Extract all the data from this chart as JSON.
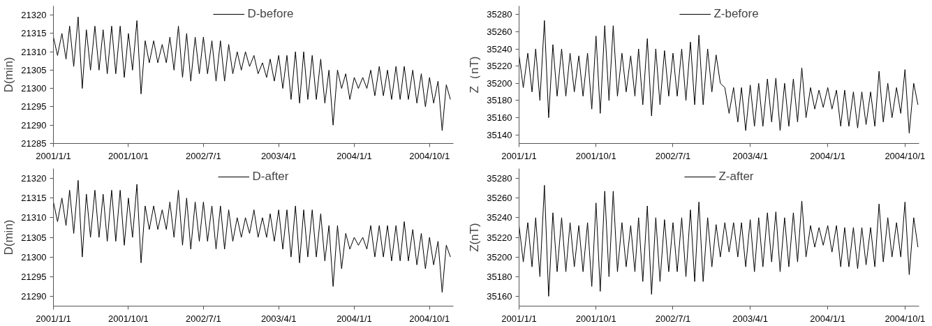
{
  "chart_data": [
    {
      "type": "line",
      "ylabel": "D(min)",
      "legend": "top",
      "xlim": [
        "2001-01-01",
        "2004-12-27"
      ],
      "ylim": [
        21285,
        21322.5
      ],
      "yticks": [
        21285,
        21290,
        21295,
        21300,
        21305,
        21310,
        21315,
        21320
      ],
      "xticks": [
        {
          "value": "2001-01-01",
          "label": "2001/1/1"
        },
        {
          "value": "2001-10-01",
          "label": "2001/10/1"
        },
        {
          "value": "2002-07-01",
          "label": "2002/7/1"
        },
        {
          "value": "2003-04-01",
          "label": "2003/4/1"
        },
        {
          "value": "2004-01-01",
          "label": "2004/1/1"
        },
        {
          "value": "2004-10-01",
          "label": "2004/10/1"
        }
      ],
      "x": [
        "2001-01-01",
        "2001-01-16",
        "2001-02-01",
        "2001-02-16",
        "2001-03-01",
        "2001-03-16",
        "2001-04-01",
        "2001-04-16",
        "2001-05-01",
        "2001-05-16",
        "2001-06-01",
        "2001-06-16",
        "2001-07-01",
        "2001-07-16",
        "2001-08-01",
        "2001-08-16",
        "2001-09-01",
        "2001-09-16",
        "2001-10-01",
        "2001-10-16",
        "2001-11-01",
        "2001-11-16",
        "2001-12-01",
        "2001-12-16",
        "2002-01-01",
        "2002-01-16",
        "2002-02-01",
        "2002-02-16",
        "2002-03-01",
        "2002-03-16",
        "2002-04-01",
        "2002-04-16",
        "2002-05-01",
        "2002-05-16",
        "2002-06-01",
        "2002-06-16",
        "2002-07-01",
        "2002-07-16",
        "2002-08-01",
        "2002-08-16",
        "2002-09-01",
        "2002-09-16",
        "2002-10-01",
        "2002-10-16",
        "2002-11-01",
        "2002-11-16",
        "2002-12-01",
        "2002-12-16",
        "2003-01-01",
        "2003-01-16",
        "2003-02-01",
        "2003-02-16",
        "2003-03-01",
        "2003-03-16",
        "2003-04-01",
        "2003-04-16",
        "2003-05-01",
        "2003-05-16",
        "2003-06-01",
        "2003-06-16",
        "2003-07-01",
        "2003-07-16",
        "2003-08-01",
        "2003-08-16",
        "2003-09-01",
        "2003-09-16",
        "2003-10-01",
        "2003-10-16",
        "2003-11-01",
        "2003-11-16",
        "2003-12-01",
        "2003-12-16",
        "2004-01-01",
        "2004-01-16",
        "2004-02-01",
        "2004-02-16",
        "2004-03-01",
        "2004-03-16",
        "2004-04-01",
        "2004-04-16",
        "2004-05-01",
        "2004-05-16",
        "2004-06-01",
        "2004-06-16",
        "2004-07-01",
        "2004-07-16",
        "2004-08-01",
        "2004-08-16",
        "2004-09-01",
        "2004-09-16",
        "2004-10-01",
        "2004-10-16",
        "2004-11-01",
        "2004-11-16",
        "2004-12-01",
        "2004-12-16"
      ],
      "series": [
        {
          "name": "D-before",
          "color": "#000000",
          "values": [
            21314,
            21309,
            21315,
            21308,
            21317,
            21306,
            21319.5,
            21300,
            21316,
            21305,
            21317,
            21305,
            21316,
            21304,
            21317,
            21304,
            21317,
            21303,
            21315,
            21305,
            21318.5,
            21298.5,
            21313,
            21307,
            21313,
            21307,
            21312,
            21307,
            21314,
            21305,
            21317,
            21303,
            21315,
            21302,
            21314,
            21304,
            21314,
            21304,
            21313,
            21302,
            21313,
            21302,
            21312,
            21304,
            21310,
            21305,
            21310,
            21306,
            21309,
            21304,
            21307,
            21303,
            21308,
            21302,
            21309,
            21300,
            21309,
            21297,
            21310,
            21296,
            21310,
            21297,
            21309,
            21297,
            21308,
            21296,
            21305,
            21290,
            21305,
            21300,
            21304,
            21297,
            21303,
            21300,
            21303,
            21300,
            21305,
            21298,
            21306,
            21298,
            21305,
            21297,
            21306,
            21297,
            21306,
            21297,
            21305,
            21296,
            21304,
            21295,
            21303,
            21296,
            21302,
            21288.5,
            21301,
            21297
          ]
        }
      ]
    },
    {
      "type": "line",
      "ylabel": "Z（nT)",
      "legend": "top",
      "xlim": [
        "2001-01-01",
        "2004-11-20"
      ],
      "ylim": [
        35130,
        35290
      ],
      "yticks": [
        35140,
        35160,
        35180,
        35200,
        35220,
        35240,
        35260,
        35280
      ],
      "xticks": [
        {
          "value": "2001-01-01",
          "label": "2001/1/1"
        },
        {
          "value": "2001-10-01",
          "label": "2001/10/1"
        },
        {
          "value": "2002-07-01",
          "label": "2002/7/1"
        },
        {
          "value": "2003-04-01",
          "label": "2003/4/1"
        },
        {
          "value": "2004-01-01",
          "label": "2004/1/1"
        },
        {
          "value": "2004-10-01",
          "label": "2004/10/1"
        }
      ],
      "x": [
        "2001-01-01",
        "2001-01-16",
        "2001-02-01",
        "2001-02-16",
        "2001-03-01",
        "2001-03-16",
        "2001-04-01",
        "2001-04-16",
        "2001-05-01",
        "2001-05-16",
        "2001-06-01",
        "2001-06-16",
        "2001-07-01",
        "2001-07-16",
        "2001-08-01",
        "2001-08-16",
        "2001-09-01",
        "2001-09-16",
        "2001-10-01",
        "2001-10-16",
        "2001-11-01",
        "2001-11-16",
        "2001-12-01",
        "2001-12-16",
        "2002-01-01",
        "2002-01-16",
        "2002-02-01",
        "2002-02-16",
        "2002-03-01",
        "2002-03-16",
        "2002-04-01",
        "2002-04-16",
        "2002-05-01",
        "2002-05-16",
        "2002-06-01",
        "2002-06-16",
        "2002-07-01",
        "2002-07-16",
        "2002-08-01",
        "2002-08-16",
        "2002-09-01",
        "2002-09-16",
        "2002-10-01",
        "2002-10-16",
        "2002-11-01",
        "2002-11-16",
        "2002-12-01",
        "2002-12-16",
        "2003-01-01",
        "2003-01-16",
        "2003-02-01",
        "2003-02-16",
        "2003-03-01",
        "2003-03-16",
        "2003-04-01",
        "2003-04-16",
        "2003-05-01",
        "2003-05-16",
        "2003-06-01",
        "2003-06-16",
        "2003-07-01",
        "2003-07-16",
        "2003-08-01",
        "2003-08-16",
        "2003-09-01",
        "2003-09-16",
        "2003-10-01",
        "2003-10-16",
        "2003-11-01",
        "2003-11-16",
        "2003-12-01",
        "2003-12-16",
        "2004-01-01",
        "2004-01-16",
        "2004-02-01",
        "2004-02-16",
        "2004-03-01",
        "2004-03-16",
        "2004-04-01",
        "2004-04-16",
        "2004-05-01",
        "2004-05-16",
        "2004-06-01",
        "2004-06-16",
        "2004-07-01",
        "2004-07-16",
        "2004-08-01",
        "2004-08-16",
        "2004-09-01",
        "2004-09-16",
        "2004-10-01",
        "2004-10-16",
        "2004-11-01",
        "2004-11-16"
      ],
      "series": [
        {
          "name": "Z-before",
          "color": "#000000",
          "values": [
            35232,
            35195,
            35235,
            35190,
            35240,
            35180,
            35273,
            35160,
            35245,
            35185,
            35240,
            35185,
            35235,
            35190,
            35232,
            35185,
            35235,
            35170,
            35255,
            35165,
            35267,
            35180,
            35267,
            35185,
            35235,
            35190,
            35232,
            35185,
            35240,
            35175,
            35252,
            35162,
            35240,
            35175,
            35238,
            35185,
            35235,
            35185,
            35240,
            35180,
            35248,
            35175,
            35256,
            35175,
            35240,
            35190,
            35233,
            35200,
            35195,
            35165,
            35195,
            35155,
            35195,
            35145,
            35198,
            35150,
            35200,
            35150,
            35205,
            35155,
            35206,
            35145,
            35200,
            35150,
            35205,
            35155,
            35218,
            35160,
            35195,
            35170,
            35192,
            35172,
            35195,
            35170,
            35192,
            35150,
            35192,
            35150,
            35190,
            35148,
            35190,
            35152,
            35190,
            35150,
            35214,
            35155,
            35200,
            35160,
            35195,
            35165,
            35216,
            35142,
            35200,
            35175
          ]
        }
      ]
    },
    {
      "type": "line",
      "ylabel": "D(min)",
      "legend": "top",
      "xlim": [
        "2001-01-01",
        "2004-12-27"
      ],
      "ylim": [
        21287.5,
        21322.5
      ],
      "yticks": [
        21290,
        21295,
        21300,
        21305,
        21310,
        21315,
        21320
      ],
      "xticks": [
        {
          "value": "2001-01-01",
          "label": "2001/1/1"
        },
        {
          "value": "2001-10-01",
          "label": "2001/10/1"
        },
        {
          "value": "2002-07-01",
          "label": "2002/7/1"
        },
        {
          "value": "2003-04-01",
          "label": "2003/4/1"
        },
        {
          "value": "2004-01-01",
          "label": "2004/1/1"
        },
        {
          "value": "2004-10-01",
          "label": "2004/10/1"
        }
      ],
      "x": [
        "2001-01-01",
        "2001-01-16",
        "2001-02-01",
        "2001-02-16",
        "2001-03-01",
        "2001-03-16",
        "2001-04-01",
        "2001-04-16",
        "2001-05-01",
        "2001-05-16",
        "2001-06-01",
        "2001-06-16",
        "2001-07-01",
        "2001-07-16",
        "2001-08-01",
        "2001-08-16",
        "2001-09-01",
        "2001-09-16",
        "2001-10-01",
        "2001-10-16",
        "2001-11-01",
        "2001-11-16",
        "2001-12-01",
        "2001-12-16",
        "2002-01-01",
        "2002-01-16",
        "2002-02-01",
        "2002-02-16",
        "2002-03-01",
        "2002-03-16",
        "2002-04-01",
        "2002-04-16",
        "2002-05-01",
        "2002-05-16",
        "2002-06-01",
        "2002-06-16",
        "2002-07-01",
        "2002-07-16",
        "2002-08-01",
        "2002-08-16",
        "2002-09-01",
        "2002-09-16",
        "2002-10-01",
        "2002-10-16",
        "2002-11-01",
        "2002-11-16",
        "2002-12-01",
        "2002-12-16",
        "2003-01-01",
        "2003-01-16",
        "2003-02-01",
        "2003-02-16",
        "2003-03-01",
        "2003-03-16",
        "2003-04-01",
        "2003-04-16",
        "2003-05-01",
        "2003-05-16",
        "2003-06-01",
        "2003-06-16",
        "2003-07-01",
        "2003-07-16",
        "2003-08-01",
        "2003-08-16",
        "2003-09-01",
        "2003-09-16",
        "2003-10-01",
        "2003-10-16",
        "2003-11-01",
        "2003-11-16",
        "2003-12-01",
        "2003-12-16",
        "2004-01-01",
        "2004-01-16",
        "2004-02-01",
        "2004-02-16",
        "2004-03-01",
        "2004-03-16",
        "2004-04-01",
        "2004-04-16",
        "2004-05-01",
        "2004-05-16",
        "2004-06-01",
        "2004-06-16",
        "2004-07-01",
        "2004-07-16",
        "2004-08-01",
        "2004-08-16",
        "2004-09-01",
        "2004-09-16",
        "2004-10-01",
        "2004-10-16",
        "2004-11-01",
        "2004-11-16",
        "2004-12-01",
        "2004-12-16"
      ],
      "series": [
        {
          "name": "D-after",
          "color": "#000000",
          "values": [
            21314,
            21309,
            21315,
            21308,
            21317,
            21306,
            21319.5,
            21300,
            21316,
            21305,
            21317,
            21305,
            21316,
            21304,
            21317,
            21304,
            21317,
            21303,
            21315,
            21305,
            21318.5,
            21298.5,
            21313,
            21307,
            21313,
            21307,
            21312,
            21307,
            21314,
            21305,
            21317,
            21303,
            21315,
            21302,
            21314,
            21304,
            21314,
            21304,
            21313,
            21302,
            21313,
            21302,
            21312,
            21304,
            21310,
            21305,
            21310,
            21306,
            21312,
            21305,
            21310,
            21305,
            21311,
            21304,
            21312,
            21302,
            21312,
            21300,
            21313,
            21298.5,
            21312,
            21300,
            21312,
            21300,
            21311,
            21299,
            21308,
            21292.5,
            21308,
            21297,
            21306,
            21302,
            21305,
            21303,
            21305,
            21302,
            21308,
            21300,
            21308,
            21300,
            21308,
            21299,
            21308,
            21299,
            21309,
            21299,
            21307,
            21298,
            21306,
            21297,
            21305,
            21298,
            21304,
            21291,
            21303,
            21300
          ]
        }
      ]
    },
    {
      "type": "line",
      "ylabel": "Z(nT)",
      "legend": "top",
      "xlim": [
        "2001-01-01",
        "2004-11-20"
      ],
      "ylim": [
        35150,
        35290
      ],
      "yticks": [
        35160,
        35180,
        35200,
        35220,
        35240,
        35260,
        35280
      ],
      "xticks": [
        {
          "value": "2001-01-01",
          "label": "2001/1/1"
        },
        {
          "value": "2001-10-01",
          "label": "2001/10/1"
        },
        {
          "value": "2002-07-01",
          "label": "2002/7/1"
        },
        {
          "value": "2003-04-01",
          "label": "2003/4/1"
        },
        {
          "value": "2004-01-01",
          "label": "2004/1/1"
        },
        {
          "value": "2004-10-01",
          "label": "2004/10/1"
        }
      ],
      "x": [
        "2001-01-01",
        "2001-01-16",
        "2001-02-01",
        "2001-02-16",
        "2001-03-01",
        "2001-03-16",
        "2001-04-01",
        "2001-04-16",
        "2001-05-01",
        "2001-05-16",
        "2001-06-01",
        "2001-06-16",
        "2001-07-01",
        "2001-07-16",
        "2001-08-01",
        "2001-08-16",
        "2001-09-01",
        "2001-09-16",
        "2001-10-01",
        "2001-10-16",
        "2001-11-01",
        "2001-11-16",
        "2001-12-01",
        "2001-12-16",
        "2002-01-01",
        "2002-01-16",
        "2002-02-01",
        "2002-02-16",
        "2002-03-01",
        "2002-03-16",
        "2002-04-01",
        "2002-04-16",
        "2002-05-01",
        "2002-05-16",
        "2002-06-01",
        "2002-06-16",
        "2002-07-01",
        "2002-07-16",
        "2002-08-01",
        "2002-08-16",
        "2002-09-01",
        "2002-09-16",
        "2002-10-01",
        "2002-10-16",
        "2002-11-01",
        "2002-11-16",
        "2002-12-01",
        "2002-12-16",
        "2003-01-01",
        "2003-01-16",
        "2003-02-01",
        "2003-02-16",
        "2003-03-01",
        "2003-03-16",
        "2003-04-01",
        "2003-04-16",
        "2003-05-01",
        "2003-05-16",
        "2003-06-01",
        "2003-06-16",
        "2003-07-01",
        "2003-07-16",
        "2003-08-01",
        "2003-08-16",
        "2003-09-01",
        "2003-09-16",
        "2003-10-01",
        "2003-10-16",
        "2003-11-01",
        "2003-11-16",
        "2003-12-01",
        "2003-12-16",
        "2004-01-01",
        "2004-01-16",
        "2004-02-01",
        "2004-02-16",
        "2004-03-01",
        "2004-03-16",
        "2004-04-01",
        "2004-04-16",
        "2004-05-01",
        "2004-05-16",
        "2004-06-01",
        "2004-06-16",
        "2004-07-01",
        "2004-07-16",
        "2004-08-01",
        "2004-08-16",
        "2004-09-01",
        "2004-09-16",
        "2004-10-01",
        "2004-10-16",
        "2004-11-01",
        "2004-11-16"
      ],
      "series": [
        {
          "name": "Z-after",
          "color": "#000000",
          "values": [
            35232,
            35195,
            35235,
            35190,
            35240,
            35180,
            35273,
            35160,
            35245,
            35185,
            35240,
            35185,
            35235,
            35190,
            35232,
            35185,
            35235,
            35170,
            35255,
            35165,
            35267,
            35180,
            35267,
            35185,
            35235,
            35190,
            35232,
            35185,
            35240,
            35175,
            35252,
            35162,
            35240,
            35175,
            35238,
            35185,
            35235,
            35185,
            35240,
            35180,
            35248,
            35175,
            35256,
            35175,
            35240,
            35190,
            35233,
            35200,
            35235,
            35205,
            35235,
            35200,
            35235,
            35190,
            35238,
            35185,
            35240,
            35190,
            35245,
            35195,
            35246,
            35185,
            35240,
            35190,
            35245,
            35195,
            35257,
            35200,
            35232,
            35210,
            35230,
            35212,
            35232,
            35205,
            35232,
            35190,
            35230,
            35190,
            35230,
            35188,
            35230,
            35192,
            35230,
            35190,
            35254,
            35195,
            35240,
            35200,
            35235,
            35200,
            35256,
            35182,
            35240,
            35210
          ]
        }
      ]
    }
  ]
}
